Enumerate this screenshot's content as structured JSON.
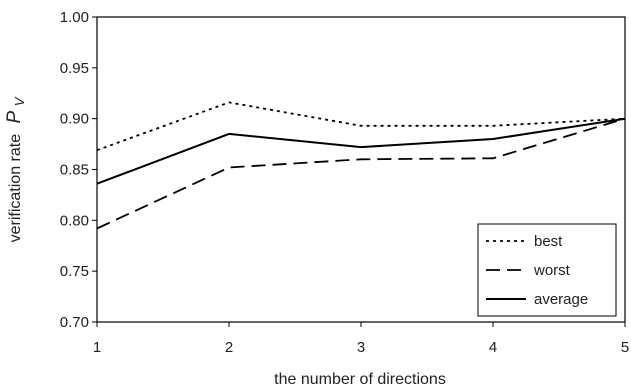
{
  "chart_data": {
    "type": "line",
    "x": [
      1,
      2,
      3,
      4,
      5
    ],
    "xlim": [
      1,
      5
    ],
    "ylim": [
      0.7,
      1.0
    ],
    "yticks": [
      0.7,
      0.75,
      0.8,
      0.85,
      0.9,
      0.95,
      1.0
    ],
    "xtick_labels": [
      "1",
      "2",
      "3",
      "4",
      "5"
    ],
    "ytick_labels": [
      "0.70",
      "0.75",
      "0.80",
      "0.85",
      "0.90",
      "0.95",
      "1.00"
    ],
    "xlabel": "the number of directions",
    "ylabel": "verification rate",
    "ylabel_symbol": "P",
    "ylabel_symbol_sub": "V",
    "grid": false,
    "legend_position": "bottom-right",
    "series": [
      {
        "name": "best",
        "style": "dotted",
        "values": [
          0.869,
          0.916,
          0.893,
          0.893,
          0.9
        ]
      },
      {
        "name": "worst",
        "style": "dashed",
        "values": [
          0.792,
          0.852,
          0.86,
          0.861,
          0.9
        ]
      },
      {
        "name": "average",
        "style": "solid",
        "values": [
          0.836,
          0.885,
          0.872,
          0.88,
          0.9
        ]
      }
    ],
    "colors": {
      "line": "#000000",
      "axis": "#000000"
    }
  }
}
